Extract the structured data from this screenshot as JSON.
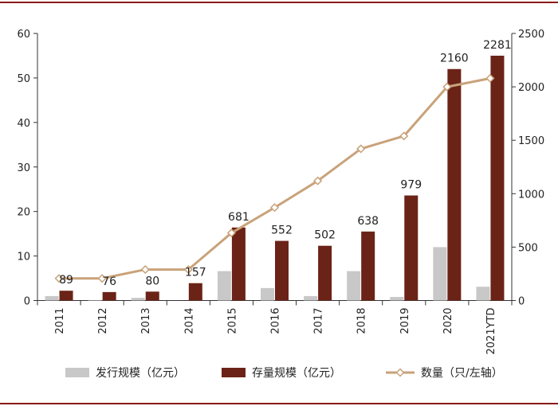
{
  "chart_data": {
    "type": "bar",
    "categories": [
      "2011",
      "2012",
      "2013",
      "2014",
      "2015",
      "2016",
      "2017",
      "2018",
      "2019",
      "2020",
      "2021YTD"
    ],
    "series": [
      {
        "name": "发行规模（亿元）",
        "type": "bar",
        "axis": "left",
        "color": "#c8c8c8",
        "values": [
          1.0,
          0.1,
          0.6,
          0,
          6.6,
          2.8,
          1.0,
          6.6,
          0.8,
          12.0,
          3.1
        ]
      },
      {
        "name": "存量规模（亿元）",
        "type": "bar",
        "axis": "left",
        "color": "#6b2317",
        "values": [
          2.2,
          1.9,
          2.0,
          3.9,
          16.4,
          13.4,
          12.3,
          15.5,
          23.6,
          52.0,
          55.0
        ]
      },
      {
        "name": "数量（只/左轴）",
        "type": "line",
        "axis": "right",
        "color": "#c9a27a",
        "values": [
          207,
          207,
          290,
          290,
          633,
          870,
          1120,
          1420,
          1540,
          2000,
          2080
        ]
      }
    ],
    "data_labels": [
      "89",
      "76",
      "80",
      "157",
      "681",
      "552",
      "502",
      "638",
      "979",
      "2160",
      "2281"
    ],
    "left_axis": {
      "range": [
        0,
        60
      ],
      "ticks": [
        "0",
        "10",
        "20",
        "30",
        "40",
        "50",
        "60"
      ]
    },
    "right_axis": {
      "range": [
        0,
        2500
      ],
      "ticks": [
        "0",
        "500",
        "1000",
        "1500",
        "2000",
        "2500"
      ]
    },
    "legend": [
      "发行规模（亿元）",
      "存量规模（亿元）",
      "数量（只/左轴）"
    ],
    "border_color": "#8b1a1a"
  }
}
